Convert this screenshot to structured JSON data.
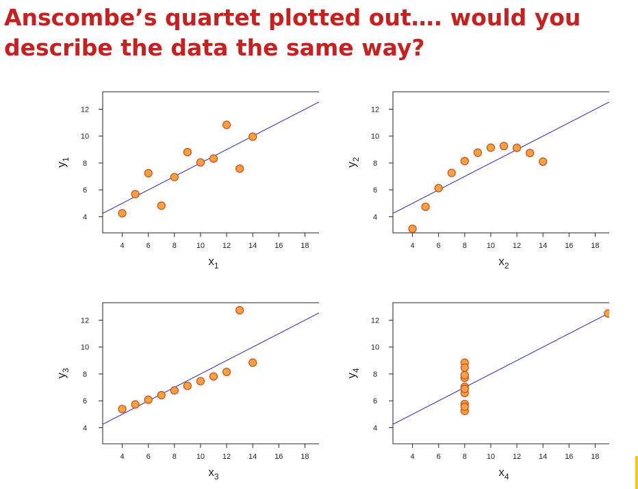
{
  "slide": {
    "title_line1": "Anscombe’s quartet plotted out…. would you",
    "title_line2": "describe the data the same way?"
  },
  "colors": {
    "title": "#c8201e",
    "marker_fill": "#f7a23c",
    "marker_edge": "#d1471e",
    "regression_line": "#2222cc",
    "accent_bar": "#f5c518"
  },
  "chart_data": [
    {
      "type": "scatter",
      "xlabel": "x",
      "xlabel_sub": "1",
      "ylabel": "y",
      "ylabel_sub": "1",
      "xlim": [
        2.5,
        19.5
      ],
      "ylim": [
        2.8,
        13.3
      ],
      "xticks": [
        4,
        6,
        8,
        10,
        12,
        14,
        16,
        18
      ],
      "xtick_labels": [
        "4",
        "6",
        "8",
        "10",
        "12",
        "14",
        "16",
        "18"
      ],
      "yticks": [
        4,
        6,
        8,
        10,
        12
      ],
      "ytick_labels": [
        "4",
        "6",
        "8",
        "10",
        "12"
      ],
      "points": [
        [
          10,
          8.04
        ],
        [
          8,
          6.95
        ],
        [
          13,
          7.58
        ],
        [
          9,
          8.81
        ],
        [
          11,
          8.33
        ],
        [
          14,
          9.96
        ],
        [
          6,
          7.24
        ],
        [
          4,
          4.26
        ],
        [
          12,
          10.84
        ],
        [
          7,
          4.82
        ],
        [
          5,
          5.68
        ]
      ],
      "fit_line": {
        "intercept": 3.0,
        "slope": 0.5
      },
      "grid": false
    },
    {
      "type": "scatter",
      "xlabel": "x",
      "xlabel_sub": "2",
      "ylabel": "y",
      "ylabel_sub": "2",
      "xlim": [
        2.5,
        19.5
      ],
      "ylim": [
        2.8,
        13.3
      ],
      "xticks": [
        4,
        6,
        8,
        10,
        12,
        14,
        16,
        18
      ],
      "xtick_labels": [
        "4",
        "6",
        "8",
        "10",
        "12",
        "14",
        "16",
        "18"
      ],
      "yticks": [
        4,
        6,
        8,
        10,
        12
      ],
      "ytick_labels": [
        "4",
        "6",
        "8",
        "10",
        "12"
      ],
      "points": [
        [
          10,
          9.14
        ],
        [
          8,
          8.14
        ],
        [
          13,
          8.74
        ],
        [
          9,
          8.77
        ],
        [
          11,
          9.26
        ],
        [
          14,
          8.1
        ],
        [
          6,
          6.13
        ],
        [
          4,
          3.1
        ],
        [
          12,
          9.13
        ],
        [
          7,
          7.26
        ],
        [
          5,
          4.74
        ]
      ],
      "fit_line": {
        "intercept": 3.0,
        "slope": 0.5
      },
      "grid": false
    },
    {
      "type": "scatter",
      "xlabel": "x",
      "xlabel_sub": "3",
      "ylabel": "y",
      "ylabel_sub": "3",
      "xlim": [
        2.5,
        19.5
      ],
      "ylim": [
        2.8,
        13.3
      ],
      "xticks": [
        4,
        6,
        8,
        10,
        12,
        14,
        16,
        18
      ],
      "xtick_labels": [
        "4",
        "6",
        "8",
        "10",
        "12",
        "14",
        "16",
        "18"
      ],
      "yticks": [
        4,
        6,
        8,
        10,
        12
      ],
      "ytick_labels": [
        "4",
        "6",
        "8",
        "10",
        "12"
      ],
      "points": [
        [
          10,
          7.46
        ],
        [
          8,
          6.77
        ],
        [
          13,
          12.74
        ],
        [
          9,
          7.11
        ],
        [
          11,
          7.81
        ],
        [
          14,
          8.84
        ],
        [
          6,
          6.08
        ],
        [
          4,
          5.39
        ],
        [
          12,
          8.15
        ],
        [
          7,
          6.42
        ],
        [
          5,
          5.73
        ]
      ],
      "fit_line": {
        "intercept": 3.0,
        "slope": 0.5
      },
      "grid": false
    },
    {
      "type": "scatter",
      "xlabel": "x",
      "xlabel_sub": "4",
      "ylabel": "y",
      "ylabel_sub": "4",
      "xlim": [
        2.5,
        19.5
      ],
      "ylim": [
        2.8,
        13.3
      ],
      "xticks": [
        4,
        6,
        8,
        10,
        12,
        14,
        16,
        18
      ],
      "xtick_labels": [
        "4",
        "6",
        "8",
        "10",
        "12",
        "14",
        "16",
        "18"
      ],
      "yticks": [
        4,
        6,
        8,
        10,
        12
      ],
      "ytick_labels": [
        "4",
        "6",
        "8",
        "10",
        "12"
      ],
      "points": [
        [
          8,
          6.58
        ],
        [
          8,
          5.76
        ],
        [
          8,
          7.71
        ],
        [
          8,
          8.84
        ],
        [
          8,
          8.47
        ],
        [
          8,
          7.04
        ],
        [
          8,
          5.25
        ],
        [
          19,
          12.5
        ],
        [
          8,
          5.56
        ],
        [
          8,
          7.91
        ],
        [
          8,
          6.89
        ]
      ],
      "fit_line": {
        "intercept": 3.0,
        "slope": 0.5
      },
      "grid": false
    }
  ]
}
